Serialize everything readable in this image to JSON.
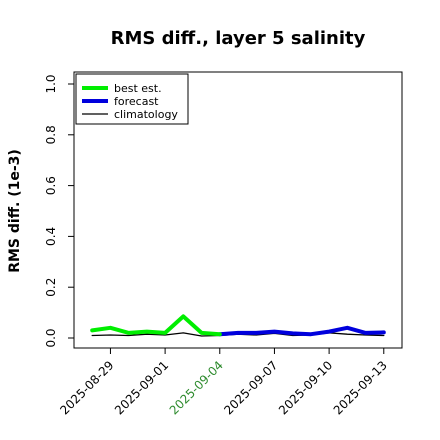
{
  "chart_data": {
    "type": "line",
    "title": "RMS diff., layer 5 salinity",
    "xlabel": "",
    "ylabel": "RMS diff. (1e-3)",
    "ylim": [
      0.0,
      1.0
    ],
    "yticks": [
      0.0,
      0.2,
      0.4,
      0.6,
      0.8,
      1.0
    ],
    "ytick_labels": [
      "0.0",
      "0.2",
      "0.4",
      "0.6",
      "0.8",
      "1.0"
    ],
    "xlim": [
      "2025-08-27",
      "2025-09-14"
    ],
    "xticks": [
      "2025-08-29",
      "2025-09-01",
      "2025-09-04",
      "2025-09-07",
      "2025-09-10",
      "2025-09-13"
    ],
    "xtick_colors": [
      "#000000",
      "#000000",
      "#2e8b2e",
      "#000000",
      "#000000",
      "#000000"
    ],
    "grid": false,
    "legend_position": "top-left",
    "series": [
      {
        "name": "best est.",
        "color": "#00ee00",
        "x": [
          "2025-08-28",
          "2025-08-29",
          "2025-08-30",
          "2025-08-31",
          "2025-09-01",
          "2025-09-02",
          "2025-09-03",
          "2025-09-04"
        ],
        "y": [
          0.03,
          0.04,
          0.02,
          0.025,
          0.02,
          0.085,
          0.02,
          0.015
        ]
      },
      {
        "name": "forecast",
        "color": "#0000dd",
        "x": [
          "2025-09-04",
          "2025-09-05",
          "2025-09-06",
          "2025-09-07",
          "2025-09-08",
          "2025-09-09",
          "2025-09-10",
          "2025-09-11",
          "2025-09-12",
          "2025-09-13"
        ],
        "y": [
          0.015,
          0.02,
          0.02,
          0.025,
          0.018,
          0.015,
          0.025,
          0.04,
          0.02,
          0.022
        ]
      },
      {
        "name": "climatology",
        "color": "#000000",
        "x": [
          "2025-08-28",
          "2025-08-29",
          "2025-08-30",
          "2025-08-31",
          "2025-09-01",
          "2025-09-02",
          "2025-09-03",
          "2025-09-04",
          "2025-09-05",
          "2025-09-06",
          "2025-09-07",
          "2025-09-08",
          "2025-09-09",
          "2025-09-10",
          "2025-09-11",
          "2025-09-12",
          "2025-09-13"
        ],
        "y": [
          0.01,
          0.012,
          0.01,
          0.015,
          0.012,
          0.02,
          0.008,
          0.01,
          0.015,
          0.012,
          0.018,
          0.01,
          0.012,
          0.02,
          0.015,
          0.012,
          0.01
        ]
      }
    ]
  }
}
